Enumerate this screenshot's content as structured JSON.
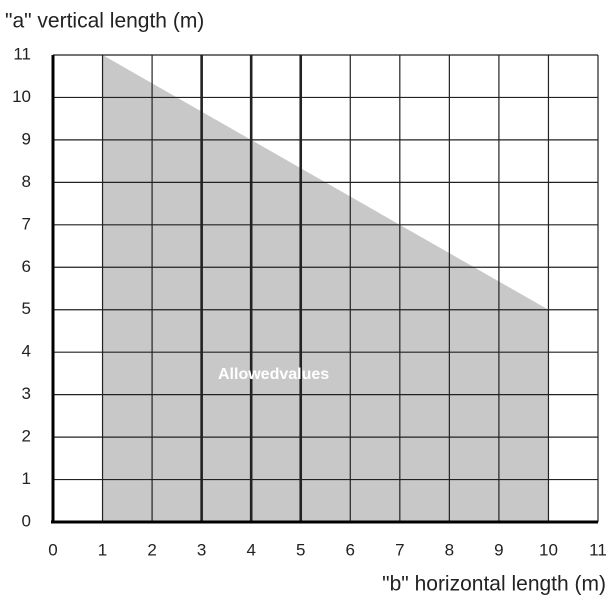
{
  "chart_data": {
    "type": "area",
    "ylabel": "\"a\" vertical length (m)",
    "xlabel": "\"b\" horizontal length (m)",
    "annotation": "Allowedvalues",
    "x": [
      1,
      10
    ],
    "values": [
      11,
      5
    ],
    "color": "#c8c8c8",
    "xlim": [
      0,
      11
    ],
    "ylim": [
      0,
      11
    ],
    "xticks": [
      0,
      1,
      2,
      3,
      4,
      5,
      6,
      7,
      8,
      9,
      10,
      11
    ],
    "yticks": [
      0,
      1,
      2,
      3,
      4,
      5,
      6,
      7,
      8,
      9,
      10,
      11
    ],
    "grid": true,
    "thick_gridlines_x": [
      3,
      4,
      5
    ]
  }
}
